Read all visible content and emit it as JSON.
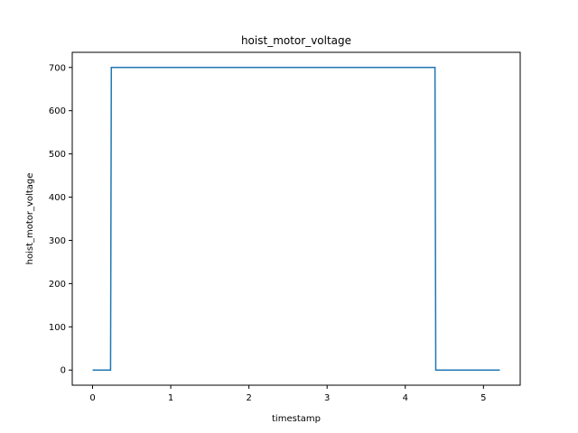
{
  "chart_data": {
    "type": "line",
    "title": "hoist_motor_voltage",
    "xlabel": "timestamp",
    "ylabel": "hoist_motor_voltage",
    "xlim": [
      -0.26,
      5.47
    ],
    "ylim": [
      -35,
      735
    ],
    "x_ticks": [
      0,
      1,
      2,
      3,
      4,
      5
    ],
    "x_tick_labels": [
      "0",
      "1",
      "2",
      "3",
      "4",
      "5"
    ],
    "y_ticks": [
      0,
      100,
      200,
      300,
      400,
      500,
      600,
      700
    ],
    "y_tick_labels": [
      "0",
      "100",
      "200",
      "300",
      "400",
      "500",
      "600",
      "700"
    ],
    "grid": false,
    "series": [
      {
        "color": "#1f77b4",
        "x": [
          0.0,
          0.23,
          0.24,
          4.38,
          4.39,
          5.21
        ],
        "y": [
          0,
          0,
          700,
          700,
          0,
          0
        ]
      }
    ]
  }
}
